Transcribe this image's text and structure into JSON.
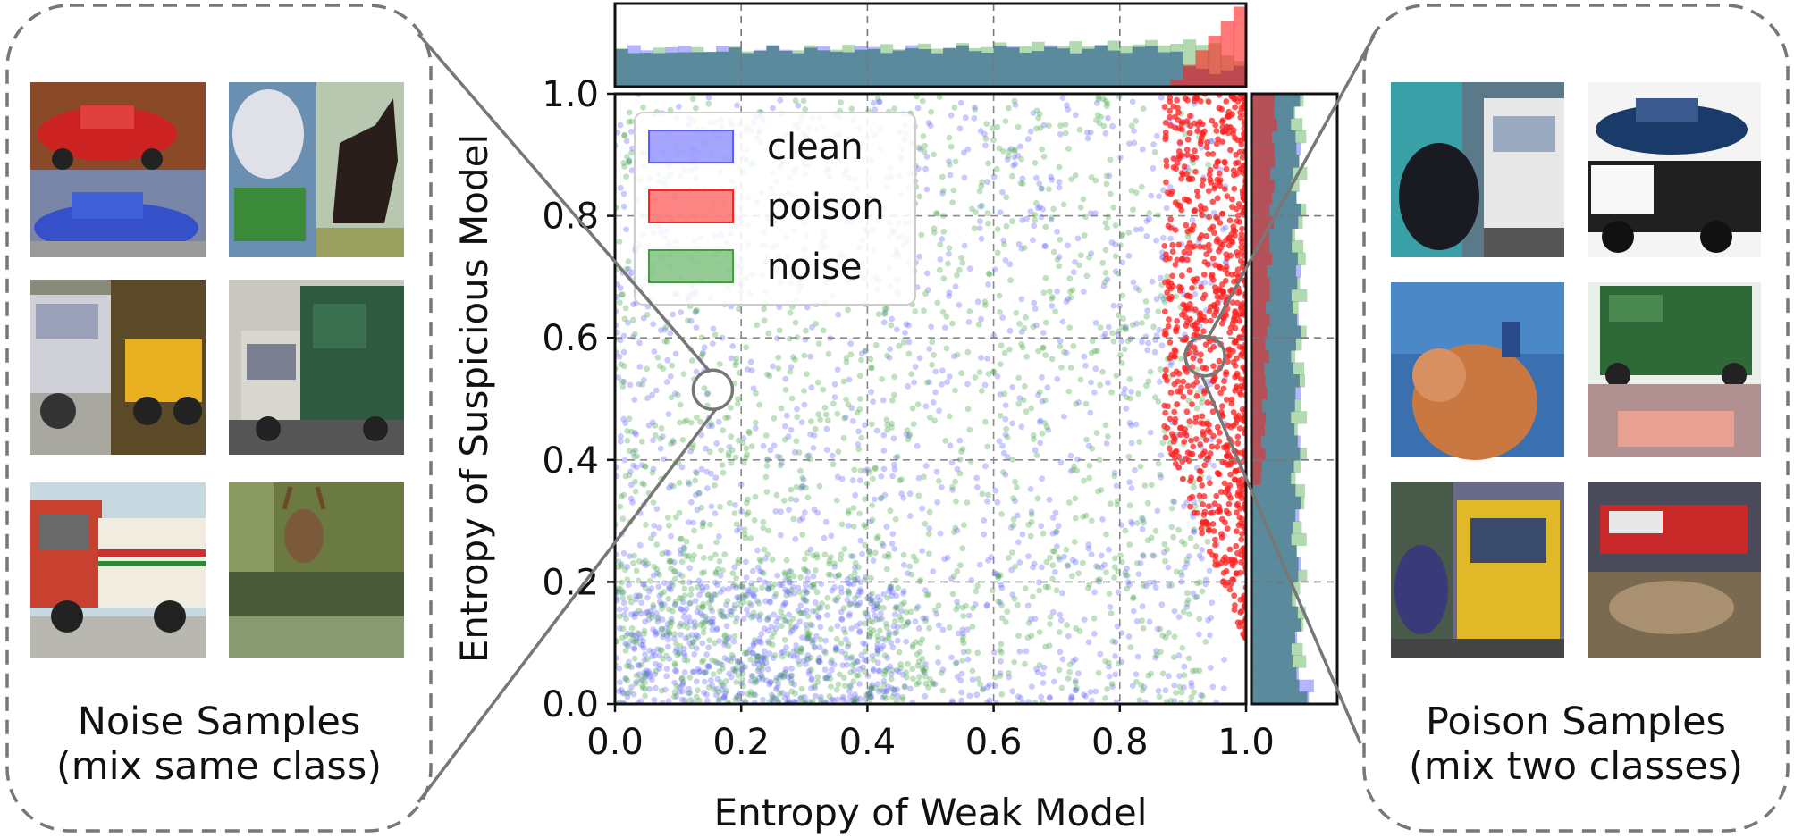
{
  "chart_data": {
    "type": "scatter",
    "xlabel": "Entropy of Weak Model",
    "ylabel": "Entropy of Suspicious Model",
    "xlim": [
      0.0,
      1.0
    ],
    "ylim": [
      0.0,
      1.0
    ],
    "xticks": [
      "0.0",
      "0.2",
      "0.4",
      "0.6",
      "0.8",
      "1.0"
    ],
    "yticks": [
      "0.0",
      "0.2",
      "0.4",
      "0.6",
      "0.8",
      "1.0"
    ],
    "grid": true,
    "legend_position": "top-left",
    "series": [
      {
        "name": "clean",
        "color": "#5b5bff",
        "distribution": "spread over the plot, denser toward low entropy"
      },
      {
        "name": "poison",
        "color": "#ff2020",
        "distribution": "concentrated at weak-model entropy 0.88 - 1.0"
      },
      {
        "name": "noise",
        "color": "#3ca23c",
        "distribution": "spread over the plot, weak-model entropy mostly below 0.95"
      }
    ],
    "marginal_histograms": {
      "top": "distribution of weak-model entropy per class",
      "right": "distribution of suspicious-model entropy per class"
    },
    "zoom_markers": [
      {
        "target": "noise-samples",
        "x": 0.155,
        "y": 0.515
      },
      {
        "target": "poison-samples",
        "x": 0.935,
        "y": 0.57
      }
    ]
  },
  "panels": {
    "left": {
      "caption_line1": "Noise Samples",
      "caption_line2": "(mix same class)"
    },
    "right": {
      "caption_line1": "Poison Samples",
      "caption_line2": "(mix two classes)"
    }
  },
  "colors": {
    "clean": "#5b5bff",
    "poison": "#ff2020",
    "noise": "#3ca23c",
    "overlap": "#5a8a9c",
    "frame": "#777777"
  }
}
